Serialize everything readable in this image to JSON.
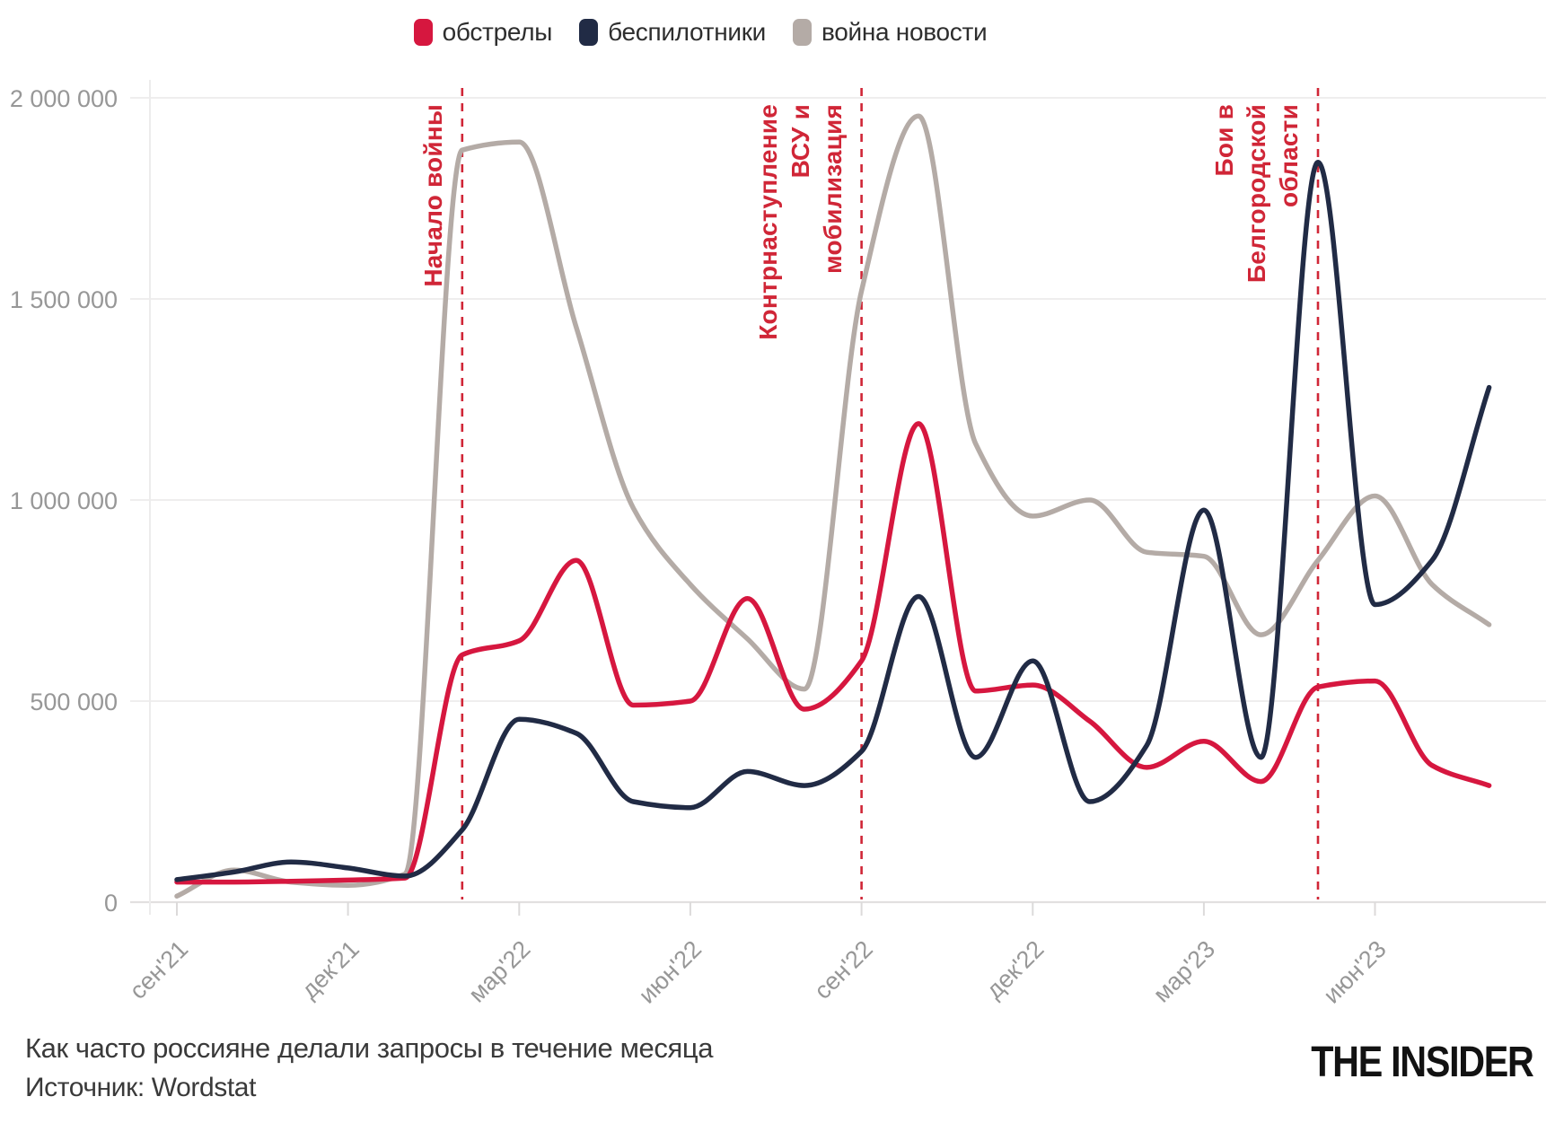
{
  "legend": {
    "items": [
      {
        "label": "обстрелы",
        "color": "#d6173f"
      },
      {
        "label": "беспилотники",
        "color": "#212b45"
      },
      {
        "label": "война новости",
        "color": "#b4aba6"
      }
    ]
  },
  "caption": {
    "title": "Как часто россияне делали запросы в течение месяца",
    "source": "Источник: Wordstat"
  },
  "branding": {
    "logo": "THE INSIDER"
  },
  "chart_data": {
    "type": "line",
    "title": "Как часто россияне делали запросы в течение месяца",
    "source": "Wordstat",
    "x": [
      "сен'21",
      "окт'21",
      "ноя'21",
      "дек'21",
      "янв'22",
      "фев'22",
      "мар'22",
      "апр'22",
      "май'22",
      "июн'22",
      "июл'22",
      "авг'22",
      "сен'22",
      "окт'22",
      "ноя'22",
      "дек'22",
      "янв'23",
      "фев'23",
      "мар'23",
      "апр'23",
      "май'23",
      "июн'23",
      "июл'23",
      "авг'23"
    ],
    "x_tick_indices": [
      0,
      3,
      6,
      9,
      12,
      15,
      18,
      21
    ],
    "x_tick_labels": [
      "сен'21",
      "дек'21",
      "мар'22",
      "июн'22",
      "сен'22",
      "дек'22",
      "мар'23",
      "июн'23"
    ],
    "ylim": [
      0,
      2000000
    ],
    "y_ticks": [
      0,
      500000,
      1000000,
      1500000,
      2000000
    ],
    "y_tick_labels": [
      "0",
      "500 000",
      "1 000 000",
      "1 500 000",
      "2 000 000"
    ],
    "grid": "horizontal",
    "legend_position": "top-center",
    "series": [
      {
        "name": "обстрелы",
        "color": "#d6173f",
        "values": [
          50000,
          50000,
          52000,
          55000,
          60000,
          615000,
          650000,
          850000,
          490000,
          500000,
          755000,
          480000,
          600000,
          1190000,
          525000,
          540000,
          450000,
          335000,
          400000,
          300000,
          535000,
          550000,
          340000,
          290000
        ]
      },
      {
        "name": "беспилотники",
        "color": "#212b45",
        "values": [
          56000,
          75000,
          100000,
          85000,
          65000,
          180000,
          455000,
          420000,
          250000,
          235000,
          325000,
          290000,
          375000,
          760000,
          360000,
          600000,
          250000,
          390000,
          975000,
          360000,
          1840000,
          740000,
          850000,
          1280000
        ]
      },
      {
        "name": "война новости",
        "color": "#b4aba6",
        "values": [
          15000,
          80000,
          50000,
          42000,
          70000,
          1870000,
          1890000,
          1430000,
          980000,
          790000,
          655000,
          530000,
          1520000,
          1955000,
          1140000,
          960000,
          1000000,
          870000,
          860000,
          665000,
          850000,
          1010000,
          790000,
          690000
        ]
      }
    ],
    "annotations": [
      {
        "lines": [
          "Начало войны",
          "",
          ""
        ],
        "x_index": 5,
        "color": "#d02637"
      },
      {
        "lines": [
          "Контрнаступление",
          "ВСУ и",
          "мобилизация"
        ],
        "x_index": 12,
        "color": "#d02637"
      },
      {
        "lines": [
          "Бои в",
          "Белгородской",
          "области"
        ],
        "x_index": 20,
        "color": "#d02637"
      }
    ]
  }
}
